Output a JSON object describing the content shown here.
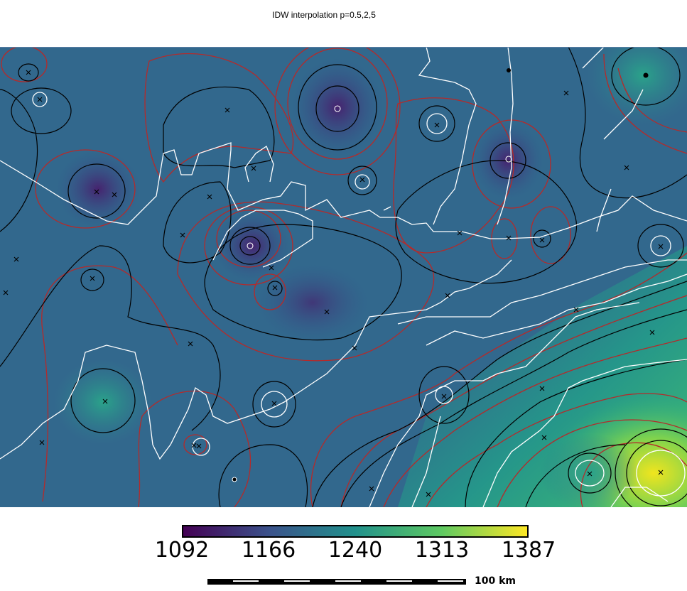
{
  "title": "IDW interpolation p=0.5,2,5",
  "colorbar": {
    "labels": [
      "1092",
      "1166",
      "1240",
      "1313",
      "1387"
    ],
    "min": 1092,
    "max": 1387,
    "colors": [
      "#440154",
      "#3b528b",
      "#21918c",
      "#5ec962",
      "#fde725"
    ]
  },
  "scalebar": {
    "label": "100 km"
  },
  "chart_data": {
    "type": "heatmap",
    "title": "IDW interpolation p=0.5,2,5",
    "value_range": [
      1092,
      1387
    ],
    "colorbar_ticks": [
      1092,
      1166,
      1240,
      1313,
      1387
    ],
    "sample_points_count": 52
  }
}
